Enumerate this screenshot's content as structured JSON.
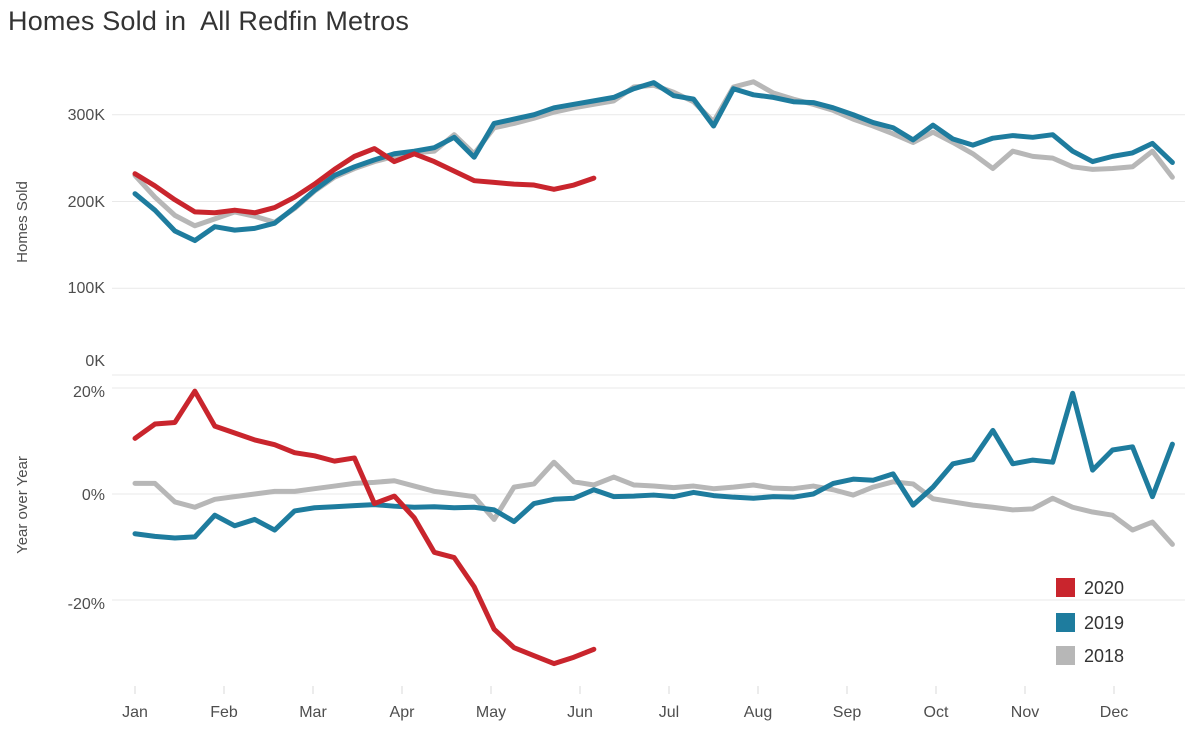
{
  "title": "Homes Sold in  All Redfin Metros",
  "colors": {
    "red_2020": "#c9252d",
    "teal_2019": "#1e7c9e",
    "gray_2018": "#b7b7b7",
    "grid": "#e9e9e9",
    "tick": "#d9d9d9",
    "title_text": "#333333",
    "axis_text": "#4e4e4e"
  },
  "x_axis": {
    "months": [
      "Jan",
      "Feb",
      "Mar",
      "Apr",
      "May",
      "Jun",
      "Jul",
      "Aug",
      "Sep",
      "Oct",
      "Nov",
      "Dec"
    ]
  },
  "legend": {
    "position": "bottom-right",
    "items": [
      {
        "label": "2020",
        "color": "#c9252d"
      },
      {
        "label": "2019",
        "color": "#1e7c9e"
      },
      {
        "label": "2018",
        "color": "#b7b7b7"
      }
    ]
  },
  "chart_data": [
    {
      "type": "line",
      "pane": "top",
      "title": "Homes Sold",
      "ylabel": "Homes Sold",
      "xlabel": "",
      "x_unit": "week of year (Jan through Dec)",
      "y_unit": "thousands of homes sold",
      "ylim": [
        0,
        345
      ],
      "grid": "horizontal-on",
      "yticks": [
        {
          "label": "300K",
          "value": 300
        },
        {
          "label": "200K",
          "value": 200
        },
        {
          "label": "100K",
          "value": 100
        },
        {
          "label": "0K",
          "value": 0
        }
      ],
      "series": [
        {
          "name": "2018",
          "color": "#b7b7b7",
          "values": [
            230,
            205,
            184,
            172,
            180,
            188,
            183,
            176,
            192,
            212,
            228,
            238,
            246,
            252,
            256,
            258,
            277,
            255,
            285,
            290,
            296,
            303,
            308,
            312,
            316,
            332,
            334,
            326,
            315,
            292,
            332,
            338,
            325,
            318,
            312,
            305,
            295,
            287,
            278,
            268,
            280,
            268,
            255,
            238,
            258,
            252,
            250,
            240,
            237,
            238,
            240,
            258,
            228
          ]
        },
        {
          "name": "2019",
          "color": "#1e7c9e",
          "values": [
            209,
            190,
            166,
            155,
            171,
            167,
            169,
            175,
            193,
            213,
            230,
            240,
            248,
            255,
            258,
            262,
            274,
            251,
            290,
            295,
            300,
            308,
            312,
            316,
            320,
            330,
            337,
            322,
            318,
            287,
            330,
            323,
            320,
            315,
            314,
            308,
            300,
            291,
            285,
            271,
            288,
            272,
            265,
            273,
            276,
            274,
            277,
            258,
            246,
            252,
            256,
            267,
            245
          ]
        },
        {
          "name": "2020",
          "color": "#c9252d",
          "note": "series ends mid-June",
          "values": [
            232,
            218,
            202,
            188,
            187,
            190,
            187,
            193,
            205,
            220,
            237,
            252,
            261,
            246,
            255,
            246,
            235,
            224,
            222,
            220,
            219,
            214,
            219,
            227
          ]
        }
      ]
    },
    {
      "type": "line",
      "pane": "bottom",
      "title": "Year over Year",
      "ylabel": "Year over Year",
      "xlabel": "",
      "x_unit": "week of year (Jan through Dec)",
      "y_unit": "percent change vs prior year",
      "ylim": [
        -34,
        22
      ],
      "grid": "horizontal-on",
      "yticks": [
        {
          "label": "20%",
          "value": 20
        },
        {
          "label": "0%",
          "value": 0
        },
        {
          "label": "-20%",
          "value": -20
        }
      ],
      "series": [
        {
          "name": "2018",
          "color": "#b7b7b7",
          "values": [
            2.0,
            2.0,
            -1.5,
            -2.5,
            -1.0,
            -0.5,
            0.0,
            0.5,
            0.5,
            1.0,
            1.5,
            2.0,
            2.2,
            2.5,
            1.5,
            0.5,
            0.0,
            -0.5,
            -4.8,
            1.3,
            1.9,
            6.0,
            2.3,
            1.7,
            3.2,
            1.7,
            1.5,
            1.2,
            1.5,
            1.0,
            1.3,
            1.7,
            1.1,
            1.0,
            1.5,
            0.8,
            -0.2,
            1.3,
            2.3,
            1.9,
            -0.9,
            -1.5,
            -2.1,
            -2.5,
            -3.0,
            -2.8,
            -0.8,
            -2.5,
            -3.4,
            -4.0,
            -6.8,
            -5.3,
            -9.5
          ]
        },
        {
          "name": "2019",
          "color": "#1e7c9e",
          "values": [
            -7.5,
            -8.0,
            -8.3,
            -8.1,
            -4.0,
            -6.0,
            -4.8,
            -6.8,
            -3.2,
            -2.6,
            -2.4,
            -2.2,
            -2.0,
            -2.3,
            -2.5,
            -2.4,
            -2.6,
            -2.5,
            -3.0,
            -5.2,
            -1.8,
            -1.0,
            -0.8,
            0.8,
            -0.5,
            -0.4,
            -0.2,
            -0.5,
            0.3,
            -0.3,
            -0.6,
            -0.8,
            -0.5,
            -0.6,
            0.0,
            2.0,
            2.8,
            2.6,
            3.8,
            -2.1,
            1.3,
            5.7,
            6.5,
            12.0,
            5.7,
            6.4,
            6.0,
            19.0,
            4.5,
            8.3,
            8.9,
            -0.5,
            9.4
          ]
        },
        {
          "name": "2020",
          "color": "#c9252d",
          "note": "series ends mid-June",
          "values": [
            10.5,
            13.2,
            13.5,
            19.4,
            12.8,
            11.5,
            10.2,
            9.3,
            7.8,
            7.2,
            6.2,
            6.8,
            -1.8,
            -0.4,
            -4.5,
            -11.0,
            -12.0,
            -17.5,
            -25.5,
            -29.0,
            -30.5,
            -32.0,
            -30.8,
            -29.3
          ]
        }
      ]
    }
  ]
}
